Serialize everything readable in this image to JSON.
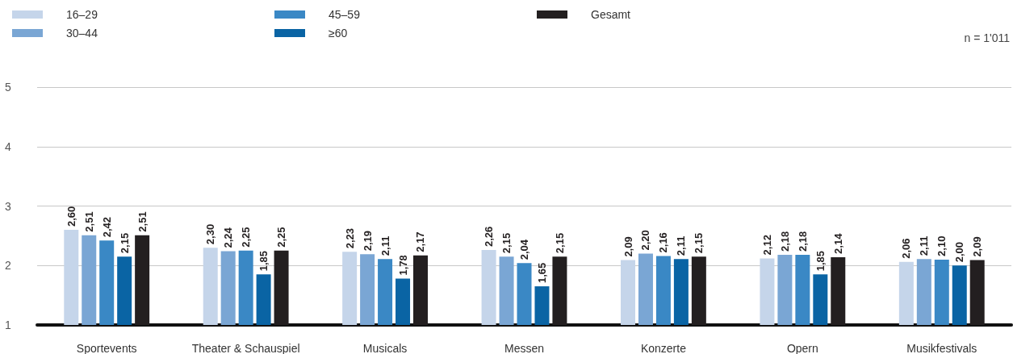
{
  "chart_data": {
    "type": "bar",
    "categories": [
      "Sportevents",
      "Theater & Schauspiel",
      "Musicals",
      "Messen",
      "Konzerte",
      "Opern",
      "Musikfestivals"
    ],
    "series": [
      {
        "name": "16–29",
        "color": "#c5d5ea",
        "values": [
          2.6,
          2.3,
          2.23,
          2.26,
          2.09,
          2.12,
          2.06
        ],
        "value_labels": [
          "2,60",
          "2,30",
          "2,23",
          "2,26",
          "2,09",
          "2,12",
          "2,06"
        ]
      },
      {
        "name": "30–44",
        "color": "#7aa6d4",
        "values": [
          2.51,
          2.24,
          2.19,
          2.15,
          2.2,
          2.18,
          2.11
        ],
        "value_labels": [
          "2,51",
          "2,24",
          "2,19",
          "2,15",
          "2,20",
          "2,18",
          "2,11"
        ]
      },
      {
        "name": "45–59",
        "color": "#3a88c5",
        "values": [
          2.42,
          2.25,
          2.11,
          2.04,
          2.16,
          2.18,
          2.1
        ],
        "value_labels": [
          "2,42",
          "2,25",
          "2,11",
          "2,04",
          "2,16",
          "2,18",
          "2,10"
        ]
      },
      {
        "name": "≥60",
        "color": "#0a64a4",
        "values": [
          2.15,
          1.85,
          1.78,
          1.65,
          2.11,
          1.85,
          2.0
        ],
        "value_labels": [
          "2,15",
          "1,85",
          "1,78",
          "1,65",
          "2,11",
          "1,85",
          "2,00"
        ]
      },
      {
        "name": "Gesamt",
        "color": "#231f20",
        "values": [
          2.51,
          2.25,
          2.17,
          2.15,
          2.15,
          2.14,
          2.09
        ],
        "value_labels": [
          "2,51",
          "2,25",
          "2,17",
          "2,15",
          "2,15",
          "2,14",
          "2,09"
        ]
      }
    ],
    "ylim": [
      1,
      5
    ],
    "yticks": [
      1,
      2,
      3,
      4,
      5
    ],
    "grid": "y",
    "legend": "top left",
    "annotations": [
      "n = 1'011"
    ]
  }
}
